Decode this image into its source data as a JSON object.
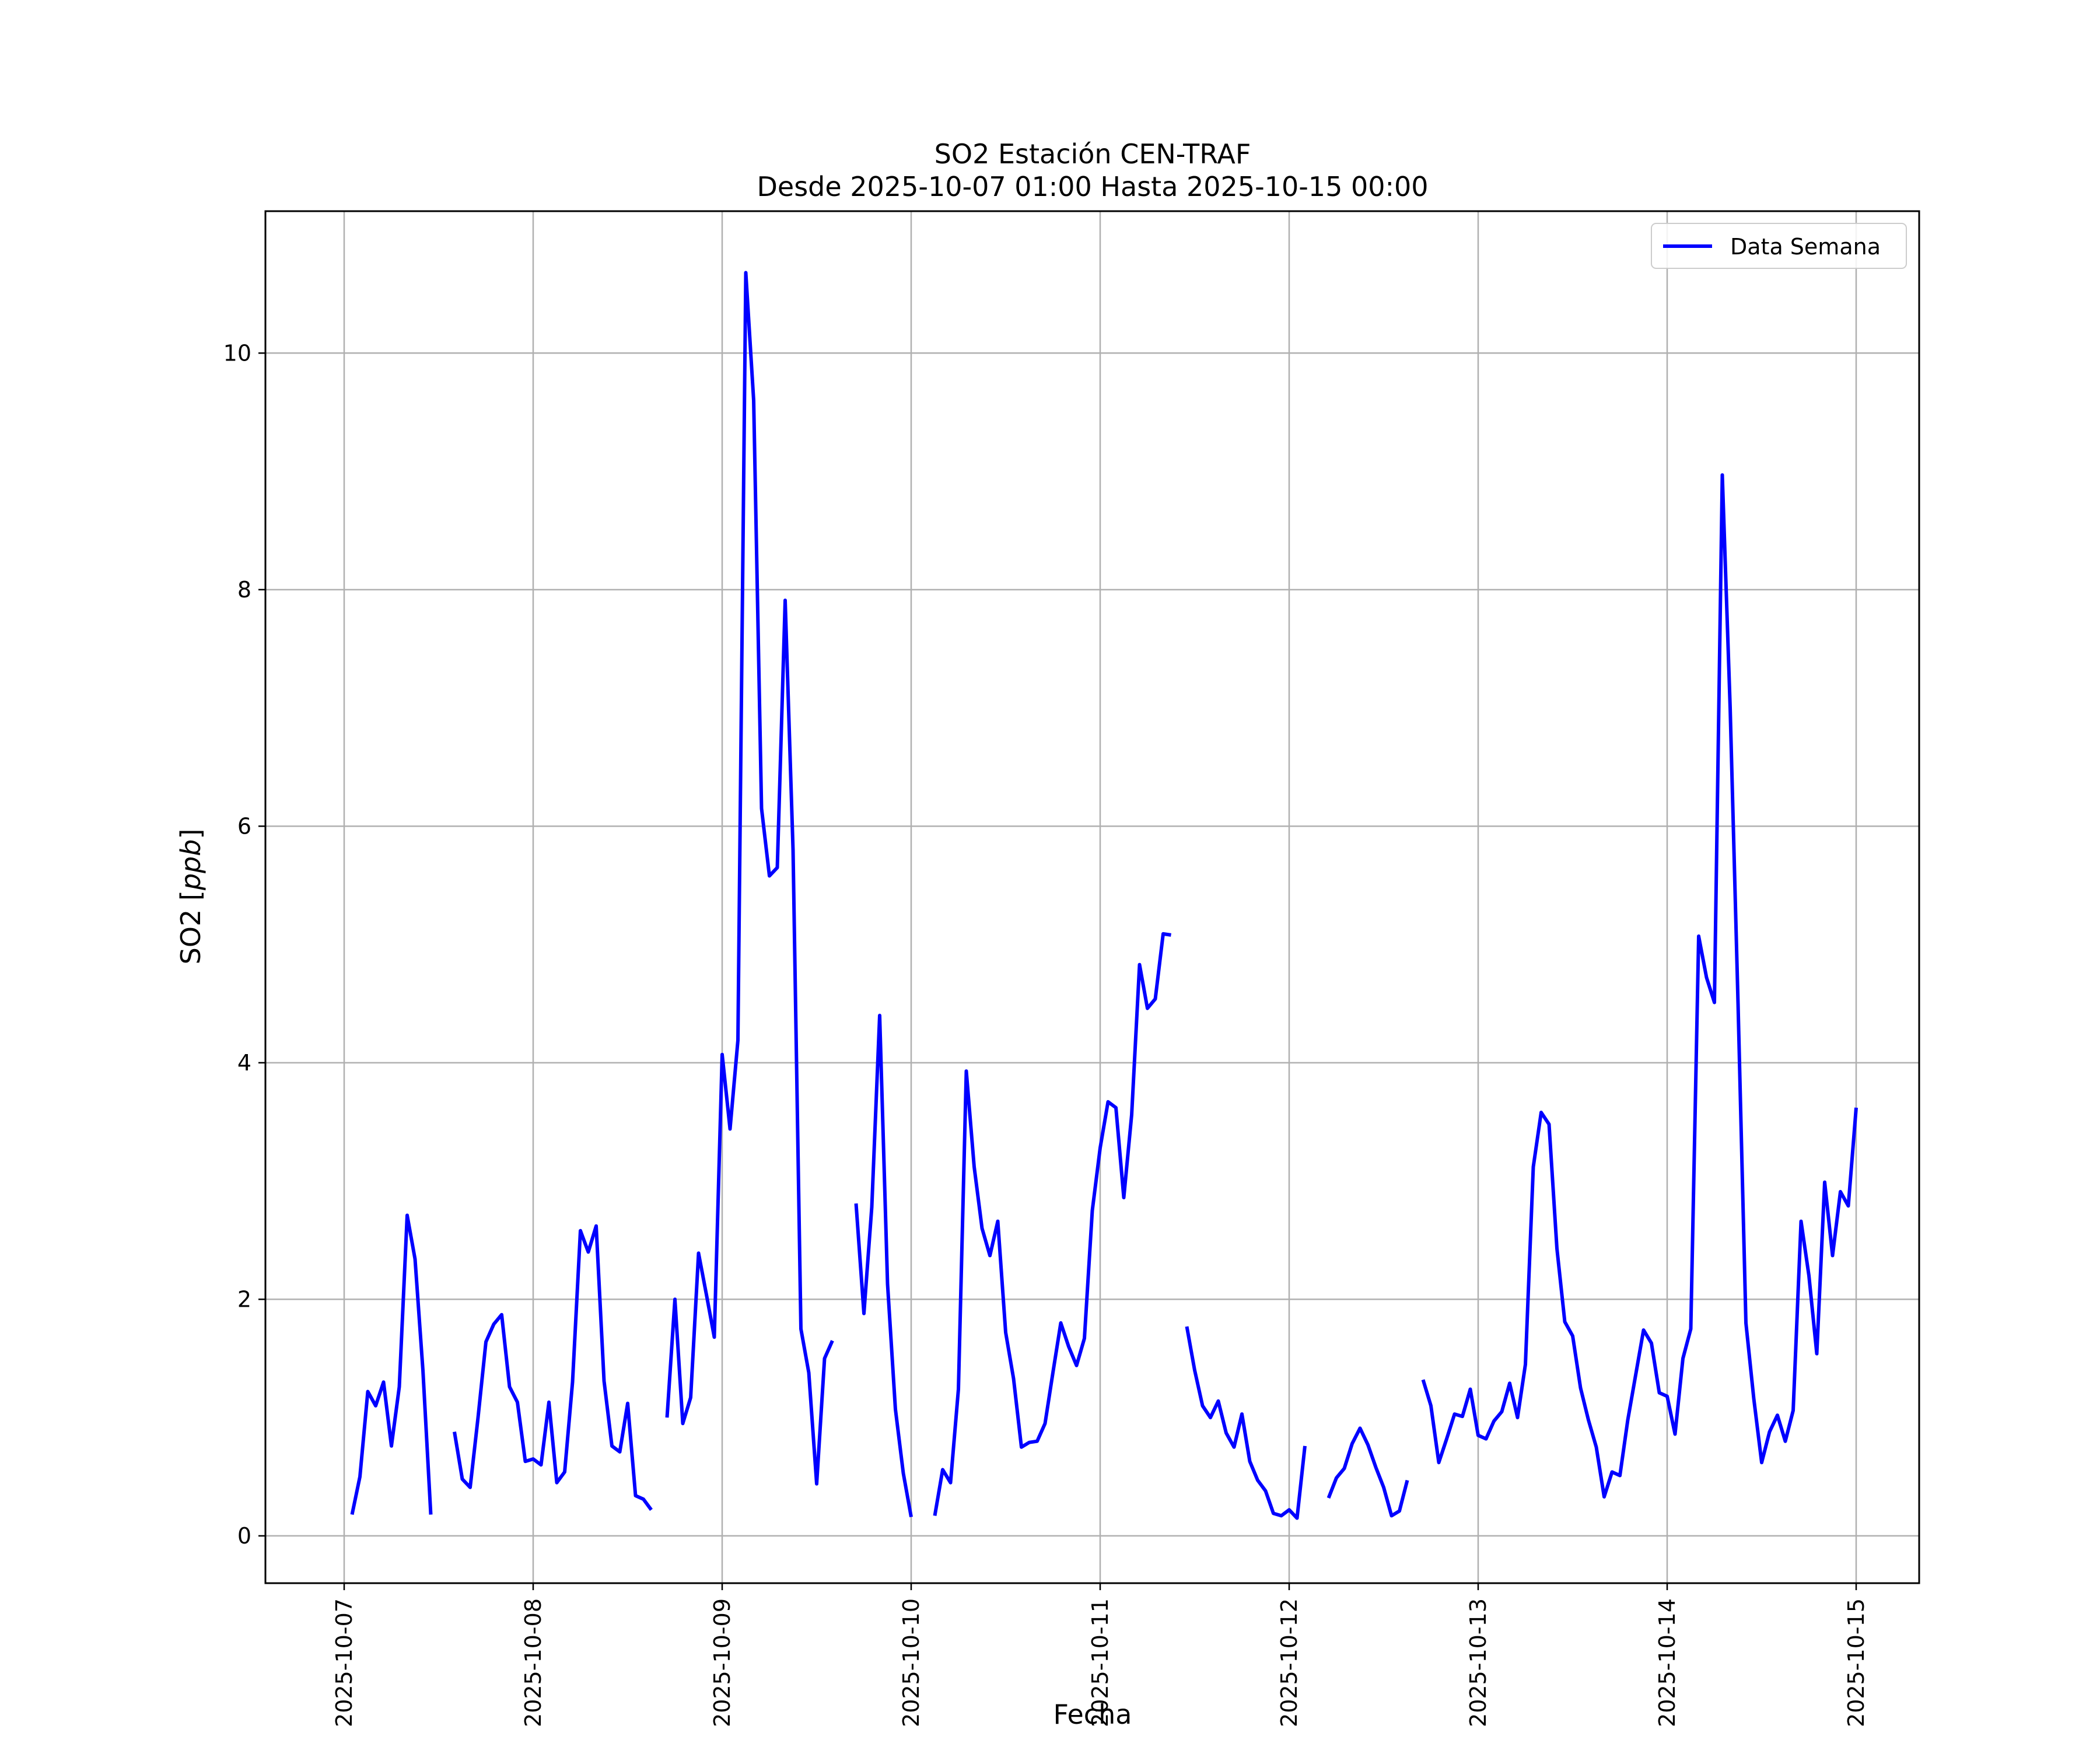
{
  "chart_data": {
    "type": "line",
    "title": "SO2 Estación CEN-TRAF",
    "subtitle": "Desde 2025-10-07 01:00 Hasta 2025-10-15 00:00",
    "xlabel": "Fecha",
    "ylabel": "SO2 [ppb]",
    "ylabel_plain": "SO2 [",
    "ylabel_italic": "ppb",
    "ylabel_close": "]",
    "xlim": [
      "2025-10-06T14:00",
      "2025-10-15T08:00"
    ],
    "ylim": [
      -0.4,
      11.2
    ],
    "yticks": [
      0,
      2,
      4,
      6,
      8,
      10
    ],
    "xticks": [
      "2025-10-07",
      "2025-10-08",
      "2025-10-09",
      "2025-10-10",
      "2025-10-11",
      "2025-10-12",
      "2025-10-13",
      "2025-10-14",
      "2025-10-15"
    ],
    "grid": true,
    "legend": {
      "position": "top-right",
      "entries": [
        "Data Semana"
      ]
    },
    "colors": {
      "line": "#0000ff",
      "grid": "#b0b0b0",
      "axes": "#000000"
    },
    "series": [
      {
        "name": "Data Semana",
        "segments": [
          [
            [
              "2025-10-07T01:00",
              0.18
            ],
            [
              "2025-10-07T02:00",
              0.5
            ],
            [
              "2025-10-07T03:00",
              1.22
            ],
            [
              "2025-10-07T04:00",
              1.1
            ],
            [
              "2025-10-07T05:00",
              1.3
            ],
            [
              "2025-10-07T06:00",
              0.76
            ],
            [
              "2025-10-07T07:00",
              1.26
            ],
            [
              "2025-10-07T08:00",
              2.71
            ],
            [
              "2025-10-07T09:00",
              2.34
            ],
            [
              "2025-10-07T10:00",
              1.4
            ],
            [
              "2025-10-07T11:00",
              0.18
            ]
          ],
          [
            [
              "2025-10-07T14:00",
              0.88
            ],
            [
              "2025-10-07T15:00",
              0.48
            ],
            [
              "2025-10-07T16:00",
              0.41
            ],
            [
              "2025-10-07T17:00",
              1.0
            ],
            [
              "2025-10-07T18:00",
              1.64
            ],
            [
              "2025-10-07T19:00",
              1.79
            ],
            [
              "2025-10-07T20:00",
              1.87
            ],
            [
              "2025-10-07T21:00",
              1.26
            ],
            [
              "2025-10-07T22:00",
              1.13
            ],
            [
              "2025-10-07T23:00",
              0.63
            ],
            [
              "2025-10-08T00:00",
              0.65
            ],
            [
              "2025-10-08T01:00",
              0.6
            ],
            [
              "2025-10-08T02:00",
              1.13
            ],
            [
              "2025-10-08T03:00",
              0.45
            ],
            [
              "2025-10-08T04:00",
              0.54
            ],
            [
              "2025-10-08T05:00",
              1.3
            ],
            [
              "2025-10-08T06:00",
              2.58
            ],
            [
              "2025-10-08T07:00",
              2.4
            ],
            [
              "2025-10-08T08:00",
              2.62
            ],
            [
              "2025-10-08T09:00",
              1.31
            ],
            [
              "2025-10-08T10:00",
              0.76
            ],
            [
              "2025-10-08T11:00",
              0.71
            ],
            [
              "2025-10-08T12:00",
              1.12
            ],
            [
              "2025-10-08T13:00",
              0.34
            ],
            [
              "2025-10-08T14:00",
              0.31
            ],
            [
              "2025-10-08T15:00",
              0.22
            ]
          ],
          [
            [
              "2025-10-08T17:00",
              1.0
            ],
            [
              "2025-10-08T18:00",
              2.0
            ],
            [
              "2025-10-08T19:00",
              0.95
            ],
            [
              "2025-10-08T20:00",
              1.17
            ],
            [
              "2025-10-08T21:00",
              2.39
            ],
            [
              "2025-10-08T22:00",
              2.04
            ],
            [
              "2025-10-08T23:00",
              1.68
            ],
            [
              "2025-10-09T00:00",
              4.07
            ],
            [
              "2025-10-09T01:00",
              3.44
            ],
            [
              "2025-10-09T02:00",
              4.19
            ],
            [
              "2025-10-09T03:00",
              10.68
            ],
            [
              "2025-10-09T04:00",
              9.6
            ],
            [
              "2025-10-09T05:00",
              6.15
            ],
            [
              "2025-10-09T06:00",
              5.58
            ],
            [
              "2025-10-09T07:00",
              5.65
            ],
            [
              "2025-10-09T08:00",
              7.91
            ],
            [
              "2025-10-09T09:00",
              5.8
            ],
            [
              "2025-10-09T10:00",
              1.75
            ],
            [
              "2025-10-09T11:00",
              1.38
            ],
            [
              "2025-10-09T12:00",
              0.44
            ],
            [
              "2025-10-09T13:00",
              1.5
            ],
            [
              "2025-10-09T14:00",
              1.65
            ]
          ],
          [
            [
              "2025-10-09T17:00",
              2.81
            ],
            [
              "2025-10-09T18:00",
              1.88
            ],
            [
              "2025-10-09T19:00",
              2.78
            ],
            [
              "2025-10-09T20:00",
              4.4
            ],
            [
              "2025-10-09T21:00",
              2.13
            ],
            [
              "2025-10-09T22:00",
              1.07
            ],
            [
              "2025-10-09T23:00",
              0.53
            ],
            [
              "2025-10-10T00:00",
              0.16
            ]
          ],
          [
            [
              "2025-10-10T03:00",
              0.17
            ],
            [
              "2025-10-10T04:00",
              0.56
            ],
            [
              "2025-10-10T05:00",
              0.45
            ],
            [
              "2025-10-10T06:00",
              1.24
            ],
            [
              "2025-10-10T07:00",
              3.93
            ],
            [
              "2025-10-10T08:00",
              3.12
            ],
            [
              "2025-10-10T09:00",
              2.6
            ],
            [
              "2025-10-10T10:00",
              2.37
            ],
            [
              "2025-10-10T11:00",
              2.66
            ],
            [
              "2025-10-10T12:00",
              1.72
            ],
            [
              "2025-10-10T13:00",
              1.33
            ],
            [
              "2025-10-10T14:00",
              0.75
            ],
            [
              "2025-10-10T15:00",
              0.79
            ],
            [
              "2025-10-10T16:00",
              0.8
            ],
            [
              "2025-10-10T17:00",
              0.95
            ],
            [
              "2025-10-10T18:00",
              1.38
            ],
            [
              "2025-10-10T19:00",
              1.8
            ],
            [
              "2025-10-10T20:00",
              1.6
            ],
            [
              "2025-10-10T21:00",
              1.44
            ],
            [
              "2025-10-10T22:00",
              1.67
            ],
            [
              "2025-10-10T23:00",
              2.75
            ],
            [
              "2025-10-11T00:00",
              3.28
            ],
            [
              "2025-10-11T01:00",
              3.67
            ],
            [
              "2025-10-11T02:00",
              3.62
            ],
            [
              "2025-10-11T03:00",
              2.86
            ],
            [
              "2025-10-11T04:00",
              3.56
            ],
            [
              "2025-10-11T05:00",
              4.83
            ],
            [
              "2025-10-11T06:00",
              4.46
            ],
            [
              "2025-10-11T07:00",
              4.54
            ],
            [
              "2025-10-11T08:00",
              5.09
            ],
            [
              "2025-10-11T09:00",
              5.08
            ]
          ],
          [
            [
              "2025-10-11T11:00",
              1.77
            ],
            [
              "2025-10-11T12:00",
              1.4
            ],
            [
              "2025-10-11T13:00",
              1.1
            ],
            [
              "2025-10-11T14:00",
              1.0
            ],
            [
              "2025-10-11T15:00",
              1.14
            ],
            [
              "2025-10-11T16:00",
              0.87
            ],
            [
              "2025-10-11T17:00",
              0.75
            ],
            [
              "2025-10-11T18:00",
              1.03
            ],
            [
              "2025-10-11T19:00",
              0.63
            ],
            [
              "2025-10-11T20:00",
              0.47
            ],
            [
              "2025-10-11T21:00",
              0.38
            ],
            [
              "2025-10-11T22:00",
              0.19
            ],
            [
              "2025-10-11T23:00",
              0.17
            ],
            [
              "2025-10-12T00:00",
              0.22
            ],
            [
              "2025-10-12T01:00",
              0.15
            ],
            [
              "2025-10-12T02:00",
              0.76
            ]
          ],
          [
            [
              "2025-10-12T05:00",
              0.32
            ],
            [
              "2025-10-12T06:00",
              0.49
            ],
            [
              "2025-10-12T07:00",
              0.57
            ],
            [
              "2025-10-12T08:00",
              0.78
            ],
            [
              "2025-10-12T09:00",
              0.91
            ],
            [
              "2025-10-12T10:00",
              0.77
            ],
            [
              "2025-10-12T11:00",
              0.58
            ],
            [
              "2025-10-12T12:00",
              0.41
            ],
            [
              "2025-10-12T13:00",
              0.17
            ],
            [
              "2025-10-12T14:00",
              0.21
            ],
            [
              "2025-10-12T15:00",
              0.47
            ]
          ],
          [
            [
              "2025-10-12T17:00",
              1.32
            ],
            [
              "2025-10-12T18:00",
              1.1
            ],
            [
              "2025-10-12T19:00",
              0.62
            ],
            [
              "2025-10-12T20:00",
              0.82
            ],
            [
              "2025-10-12T21:00",
              1.03
            ],
            [
              "2025-10-12T22:00",
              1.01
            ],
            [
              "2025-10-12T23:00",
              1.24
            ],
            [
              "2025-10-13T00:00",
              0.85
            ],
            [
              "2025-10-13T01:00",
              0.82
            ],
            [
              "2025-10-13T02:00",
              0.97
            ],
            [
              "2025-10-13T03:00",
              1.05
            ],
            [
              "2025-10-13T04:00",
              1.29
            ],
            [
              "2025-10-13T05:00",
              1.0
            ],
            [
              "2025-10-13T06:00",
              1.45
            ],
            [
              "2025-10-13T07:00",
              3.12
            ],
            [
              "2025-10-13T08:00",
              3.58
            ],
            [
              "2025-10-13T09:00",
              3.48
            ],
            [
              "2025-10-13T10:00",
              2.43
            ],
            [
              "2025-10-13T11:00",
              1.81
            ],
            [
              "2025-10-13T12:00",
              1.69
            ],
            [
              "2025-10-13T13:00",
              1.25
            ],
            [
              "2025-10-13T14:00",
              0.98
            ],
            [
              "2025-10-13T15:00",
              0.75
            ],
            [
              "2025-10-13T16:00",
              0.33
            ],
            [
              "2025-10-13T17:00",
              0.54
            ],
            [
              "2025-10-13T18:00",
              0.51
            ],
            [
              "2025-10-13T19:00",
              0.98
            ],
            [
              "2025-10-13T20:00",
              1.36
            ],
            [
              "2025-10-13T21:00",
              1.74
            ],
            [
              "2025-10-13T22:00",
              1.63
            ],
            [
              "2025-10-13T23:00",
              1.21
            ],
            [
              "2025-10-14T00:00",
              1.18
            ],
            [
              "2025-10-14T01:00",
              0.86
            ],
            [
              "2025-10-14T02:00",
              1.5
            ],
            [
              "2025-10-14T03:00",
              1.75
            ],
            [
              "2025-10-14T04:00",
              5.07
            ],
            [
              "2025-10-14T05:00",
              4.72
            ],
            [
              "2025-10-14T06:00",
              4.51
            ],
            [
              "2025-10-14T07:00",
              8.97
            ],
            [
              "2025-10-14T08:00",
              7.0
            ],
            [
              "2025-10-14T09:00",
              4.5
            ],
            [
              "2025-10-14T10:00",
              1.8
            ],
            [
              "2025-10-14T11:00",
              1.16
            ],
            [
              "2025-10-14T12:00",
              0.62
            ],
            [
              "2025-10-14T13:00",
              0.88
            ],
            [
              "2025-10-14T14:00",
              1.02
            ],
            [
              "2025-10-14T15:00",
              0.8
            ],
            [
              "2025-10-14T16:00",
              1.06
            ],
            [
              "2025-10-14T17:00",
              2.66
            ],
            [
              "2025-10-14T18:00",
              2.2
            ],
            [
              "2025-10-14T19:00",
              1.54
            ],
            [
              "2025-10-14T20:00",
              2.99
            ],
            [
              "2025-10-14T21:00",
              2.37
            ],
            [
              "2025-10-14T22:00",
              2.91
            ],
            [
              "2025-10-14T23:00",
              2.79
            ],
            [
              "2025-10-15T00:00",
              3.62
            ]
          ]
        ]
      }
    ]
  }
}
